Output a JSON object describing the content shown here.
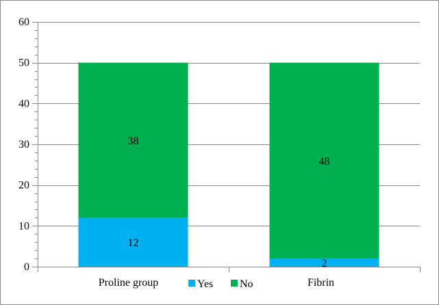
{
  "chart_data": {
    "type": "bar",
    "stacked": true,
    "categories": [
      "Proline group",
      "Fibrin"
    ],
    "series": [
      {
        "name": "Yes",
        "values": [
          12,
          2
        ],
        "color": "#00b0f0"
      },
      {
        "name": "No",
        "values": [
          38,
          48
        ],
        "color": "#00b050"
      }
    ],
    "ylim": [
      0,
      60
    ],
    "yticks": [
      0,
      10,
      20,
      30,
      40,
      50,
      60
    ],
    "ytick_labels": [
      "0",
      "10",
      "20",
      "30",
      "40",
      "50",
      "60"
    ],
    "grid": true,
    "legend_position": "bottom-center",
    "title": "",
    "xlabel": "",
    "ylabel": ""
  }
}
